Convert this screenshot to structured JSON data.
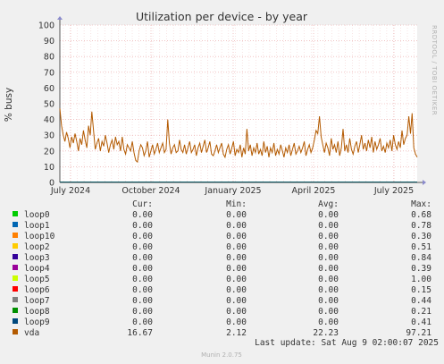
{
  "chart_data": {
    "type": "line",
    "title": "Utilization per device - by year",
    "ylabel": "% busy",
    "ylim": [
      0,
      100
    ],
    "yticks": [
      0,
      10,
      20,
      30,
      40,
      50,
      60,
      70,
      80,
      90,
      100
    ],
    "xlabels": [
      "July 2024",
      "October 2024",
      "January 2025",
      "April 2025",
      "July 2025"
    ],
    "watermark": "RRDTOOL / TOBI OETIKER",
    "grid": true,
    "columns": [
      "Cur:",
      "Min:",
      "Avg:",
      "Max:"
    ],
    "series": [
      {
        "name": "loop0",
        "color": "#00cc00",
        "cur": "0.00",
        "min": "0.00",
        "avg": "0.00",
        "max": "0.68"
      },
      {
        "name": "loop1",
        "color": "#0066b3",
        "cur": "0.00",
        "min": "0.00",
        "avg": "0.00",
        "max": "0.78"
      },
      {
        "name": "loop10",
        "color": "#ff8000",
        "cur": "0.00",
        "min": "0.00",
        "avg": "0.00",
        "max": "0.30"
      },
      {
        "name": "loop2",
        "color": "#ffcc00",
        "cur": "0.00",
        "min": "0.00",
        "avg": "0.00",
        "max": "0.51"
      },
      {
        "name": "loop3",
        "color": "#330099",
        "cur": "0.00",
        "min": "0.00",
        "avg": "0.00",
        "max": "0.84"
      },
      {
        "name": "loop4",
        "color": "#990099",
        "cur": "0.00",
        "min": "0.00",
        "avg": "0.00",
        "max": "0.39"
      },
      {
        "name": "loop5",
        "color": "#ccff00",
        "cur": "0.00",
        "min": "0.00",
        "avg": "0.00",
        "max": "1.00"
      },
      {
        "name": "loop6",
        "color": "#ff0000",
        "cur": "0.00",
        "min": "0.00",
        "avg": "0.00",
        "max": "0.15"
      },
      {
        "name": "loop7",
        "color": "#808080",
        "cur": "0.00",
        "min": "0.00",
        "avg": "0.00",
        "max": "0.44"
      },
      {
        "name": "loop8",
        "color": "#008f00",
        "cur": "0.00",
        "min": "0.00",
        "avg": "0.00",
        "max": "0.21"
      },
      {
        "name": "loop9",
        "color": "#00487d",
        "cur": "0.00",
        "min": "0.00",
        "avg": "0.00",
        "max": "0.41"
      },
      {
        "name": "vda",
        "color": "#b35a00",
        "cur": "16.67",
        "min": "2.12",
        "avg": "22.23",
        "max": "97.21",
        "values": [
          47,
          36,
          30,
          26,
          32,
          28,
          22,
          29,
          25,
          31,
          26,
          20,
          28,
          24,
          33,
          27,
          22,
          36,
          30,
          45,
          33,
          21,
          25,
          28,
          20,
          26,
          23,
          30,
          25,
          19,
          24,
          27,
          21,
          29,
          24,
          26,
          20,
          29,
          21,
          18,
          24,
          22,
          20,
          26,
          19,
          14,
          13,
          20,
          24,
          22,
          17,
          20,
          26,
          16,
          20,
          24,
          18,
          21,
          25,
          19,
          22,
          25,
          19,
          21,
          40,
          25,
          18,
          22,
          24,
          19,
          20,
          27,
          21,
          19,
          24,
          18,
          22,
          26,
          19,
          21,
          24,
          17,
          22,
          25,
          19,
          23,
          27,
          19,
          22,
          26,
          18,
          17,
          20,
          24,
          19,
          22,
          25,
          18,
          16,
          21,
          24,
          18,
          22,
          26,
          17,
          21,
          19,
          24,
          16,
          22,
          18,
          34,
          20,
          24,
          17,
          22,
          19,
          25,
          18,
          21,
          17,
          26,
          19,
          23,
          16,
          22,
          19,
          25,
          17,
          21,
          18,
          24,
          20,
          16,
          22,
          19,
          24,
          17,
          21,
          25,
          18,
          20,
          23,
          19,
          22,
          26,
          17,
          21,
          24,
          19,
          22,
          27,
          33,
          31,
          42,
          29,
          24,
          19,
          25,
          22,
          17,
          28,
          21,
          24,
          19,
          26,
          17,
          22,
          34,
          20,
          24,
          19,
          28,
          21,
          18,
          23,
          26,
          19,
          24,
          30,
          21,
          25,
          20,
          27,
          22,
          29,
          19,
          26,
          21,
          24,
          28,
          20,
          23,
          19,
          25,
          22,
          27,
          20,
          30,
          24,
          21,
          26,
          22,
          33,
          24,
          28,
          30,
          42,
          31,
          44,
          22,
          18,
          16
        ]
      }
    ]
  },
  "footer": {
    "last_update": "Last update:  Sat Aug  9 02:00:07 2025",
    "version": "Munin 2.0.75"
  }
}
